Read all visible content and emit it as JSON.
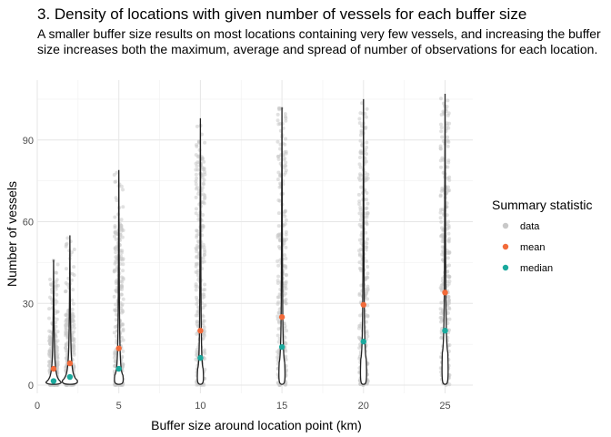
{
  "chart_data": {
    "type": "scatter",
    "title": "3. Density of locations with given number of vessels for each buffer size",
    "subtitle": "A smaller buffer size results on most locations containing very few vessels, and increasing the buffer size increases both the maximum, average and spread of number of observations for each location.",
    "xlabel": "Buffer size around location point (km)",
    "ylabel": "Number of vessels",
    "xlim": [
      0,
      26.7
    ],
    "ylim": [
      -3,
      112
    ],
    "x_ticks": [
      "0",
      "5",
      "10",
      "15",
      "20",
      "25"
    ],
    "y_ticks": [
      "0",
      "30",
      "60",
      "90"
    ],
    "grid": true,
    "legend": {
      "title": "Summary statistic",
      "placement": "right",
      "entries": [
        {
          "label": "data",
          "color": "#c8c8c8"
        },
        {
          "label": "mean",
          "color": "#f26b3a"
        },
        {
          "label": "median",
          "color": "#1aa99d"
        }
      ]
    },
    "groups": [
      {
        "buffer": 1,
        "max": 46,
        "dense_top": 20,
        "mean": 6,
        "median": 1.5
      },
      {
        "buffer": 2,
        "max": 55,
        "dense_top": 28,
        "mean": 8,
        "median": 3
      },
      {
        "buffer": 5,
        "max": 79,
        "dense_top": 60,
        "mean": 13.5,
        "median": 6
      },
      {
        "buffer": 10,
        "max": 98,
        "dense_top": 85,
        "mean": 20,
        "median": 10
      },
      {
        "buffer": 15,
        "max": 102,
        "dense_top": 100,
        "mean": 25,
        "median": 14
      },
      {
        "buffer": 20,
        "max": 105,
        "dense_top": 104,
        "mean": 29.5,
        "median": 16
      },
      {
        "buffer": 25,
        "max": 107,
        "dense_top": 106,
        "mean": 34,
        "median": 20
      }
    ]
  }
}
